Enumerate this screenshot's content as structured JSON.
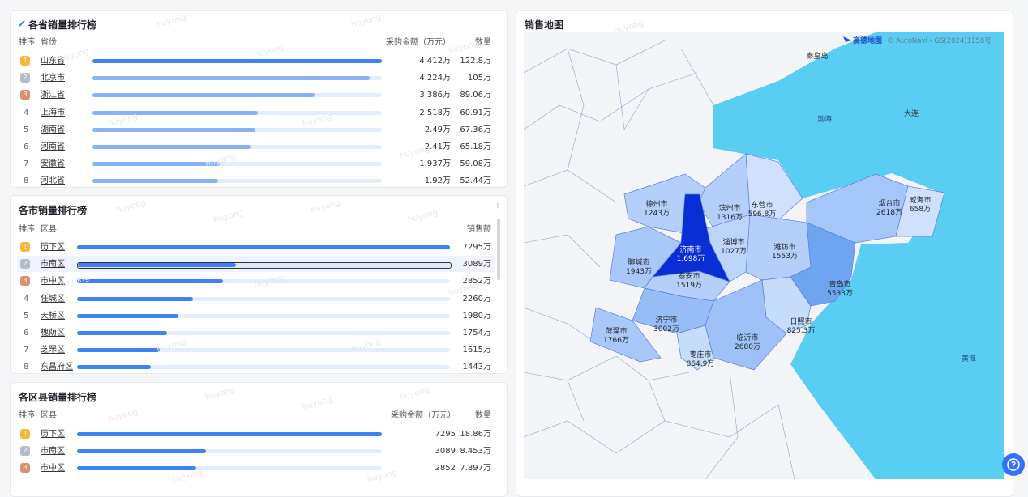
{
  "watermark": "huyong",
  "province_panel": {
    "title": "各省销量排行榜",
    "headers": [
      "排序",
      "省份",
      "采购金额（万元）",
      "数量"
    ],
    "rows": [
      {
        "rank": 1,
        "name": "山东省",
        "amount": {
          "value": 4.412,
          "label": "4.412万"
        },
        "quantity": "122.8万"
      },
      {
        "rank": 2,
        "name": "北京市",
        "amount": {
          "value": 4.224,
          "label": "4.224万"
        },
        "quantity": "105万"
      },
      {
        "rank": 3,
        "name": "浙江省",
        "amount": {
          "value": 3.386,
          "label": "3.386万"
        },
        "quantity": "89.06万"
      },
      {
        "rank": 4,
        "name": "上海市",
        "amount": {
          "value": 2.518,
          "label": "2.518万"
        },
        "quantity": "60.91万"
      },
      {
        "rank": 5,
        "name": "湖南省",
        "amount": {
          "value": 2.49,
          "label": "2.49万"
        },
        "quantity": "67.36万"
      },
      {
        "rank": 6,
        "name": "河南省",
        "amount": {
          "value": 2.41,
          "label": "2.41万"
        },
        "quantity": "65.18万"
      },
      {
        "rank": 7,
        "name": "安徽省",
        "amount": {
          "value": 1.937,
          "label": "1.937万"
        },
        "quantity": "59.08万"
      },
      {
        "rank": 8,
        "name": "河北省",
        "amount": {
          "value": 1.92,
          "label": "1.92万"
        },
        "quantity": "52.44万"
      }
    ]
  },
  "city_panel": {
    "title": "各市销量排行榜",
    "headers": [
      "排序",
      "区县",
      "销售额"
    ],
    "rows": [
      {
        "rank": 1,
        "name": "历下区",
        "amount": {
          "value": 7295,
          "label": "7295万"
        }
      },
      {
        "rank": 2,
        "name": "市南区",
        "amount": {
          "value": 3089,
          "label": "3089万"
        }
      },
      {
        "rank": 3,
        "name": "市中区",
        "amount": {
          "value": 2852,
          "label": "2852万"
        }
      },
      {
        "rank": 4,
        "name": "任城区",
        "amount": {
          "value": 2260,
          "label": "2260万"
        }
      },
      {
        "rank": 5,
        "name": "天桥区",
        "amount": {
          "value": 1980,
          "label": "1980万"
        }
      },
      {
        "rank": 6,
        "name": "槐荫区",
        "amount": {
          "value": 1754,
          "label": "1754万"
        }
      },
      {
        "rank": 7,
        "name": "芝罘区",
        "amount": {
          "value": 1615,
          "label": "1615万"
        }
      },
      {
        "rank": 8,
        "name": "东昌府区",
        "amount": {
          "value": 1443,
          "label": "1443万"
        }
      }
    ]
  },
  "district_panel": {
    "title": "各区县销量排行榜",
    "headers": [
      "排序",
      "区县",
      "采购金额（万元）",
      "数量"
    ],
    "rows": [
      {
        "rank": 1,
        "name": "历下区",
        "amount": 7295,
        "quantity": "18.86万"
      },
      {
        "rank": 2,
        "name": "市南区",
        "amount": 3089,
        "quantity": "8.453万"
      },
      {
        "rank": 3,
        "name": "市中区",
        "amount": 2852,
        "quantity": "7.897万"
      }
    ]
  },
  "map_panel": {
    "title": "销售地图",
    "provider": "高德地图",
    "copyright": "© AutoNavi - GS(2024)1158号",
    "places": [
      "渤海",
      "黄海",
      "秦皇岛",
      "大连"
    ],
    "regions": [
      {
        "name": "德州市",
        "value": {
          "value": 1243,
          "label": "1243万"
        },
        "color": "#b4d0fa"
      },
      {
        "name": "滨州市",
        "value": {
          "value": 1316,
          "label": "1316万"
        },
        "color": "#b4d0fa"
      },
      {
        "name": "东营市",
        "value": {
          "value": 596.8,
          "label": "596.8万"
        },
        "color": "#cfe1fc"
      },
      {
        "name": "烟台市",
        "value": {
          "value": 2618,
          "label": "2618万"
        },
        "color": "#a4c6f8"
      },
      {
        "name": "威海市",
        "value": {
          "value": 658,
          "label": "658万"
        },
        "color": "#cfe1fc"
      },
      {
        "name": "济南市",
        "value": {
          "value": 1698,
          "label": "1,698万"
        },
        "color": "#0a2ed6"
      },
      {
        "name": "淄博市",
        "value": {
          "value": 1027,
          "label": "1027万"
        },
        "color": "#bcd6fb"
      },
      {
        "name": "潍坊市",
        "value": {
          "value": 1553,
          "label": "1553万"
        },
        "color": "#b4d0fa"
      },
      {
        "name": "聊城市",
        "value": {
          "value": 1943,
          "label": "1943万"
        },
        "color": "#a8c8f9"
      },
      {
        "name": "泰安市",
        "value": {
          "value": 1519,
          "label": "1519万"
        },
        "color": "#b4d0fa"
      },
      {
        "name": "青岛市",
        "value": {
          "value": 5533,
          "label": "5533万"
        },
        "color": "#6fa4f0"
      },
      {
        "name": "济宁市",
        "value": {
          "value": 3002,
          "label": "3002万"
        },
        "color": "#97bdf6"
      },
      {
        "name": "菏泽市",
        "value": {
          "value": 1766,
          "label": "1766万"
        },
        "color": "#a8c8f9"
      },
      {
        "name": "日照市",
        "value": {
          "value": 825.3,
          "label": "825.3万"
        },
        "color": "#c5dcfb"
      },
      {
        "name": "临沂市",
        "value": {
          "value": 2680,
          "label": "2680万"
        },
        "color": "#9ec2f7"
      },
      {
        "name": "枣庄市",
        "value": {
          "value": 864.9,
          "label": "864.9万"
        },
        "color": "#c5dcfb"
      }
    ]
  }
}
